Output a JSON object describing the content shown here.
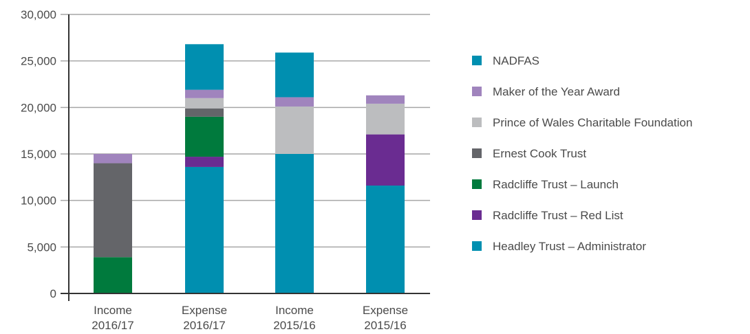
{
  "chart_data": {
    "type": "bar",
    "stacked": true,
    "title": "",
    "xlabel": "",
    "ylabel": "",
    "ylim": [
      0,
      30000
    ],
    "yticks": [
      0,
      5000,
      10000,
      15000,
      20000,
      25000,
      30000
    ],
    "ytick_labels": [
      "0",
      "5,000",
      "10,000",
      "15,000",
      "20,000",
      "25,000",
      "30,000"
    ],
    "grid": true,
    "legend_position": "right",
    "categories": [
      [
        "Income",
        "2016/17"
      ],
      [
        "Expense",
        "2016/17"
      ],
      [
        "Income",
        "2015/16"
      ],
      [
        "Expense",
        "2015/16"
      ]
    ],
    "series": [
      {
        "name": "Headley Trust – Administrator",
        "color": "#008fb0",
        "values": [
          0,
          13600,
          15000,
          11600
        ]
      },
      {
        "name": "Radcliffe Trust – Red List",
        "color": "#6a2c91",
        "values": [
          0,
          1100,
          0,
          5500
        ]
      },
      {
        "name": "Radcliffe Trust – Launch",
        "color": "#007a3d",
        "values": [
          3900,
          4300,
          0,
          0
        ]
      },
      {
        "name": "Ernest Cook Trust",
        "color": "#646569",
        "values": [
          10100,
          900,
          0,
          0
        ]
      },
      {
        "name": "Prince of Wales Charitable Foundation",
        "color": "#bcbdbf",
        "values": [
          0,
          1100,
          5100,
          3300
        ]
      },
      {
        "name": "Maker of the Year Award",
        "color": "#a084bd",
        "values": [
          1000,
          900,
          1000,
          900
        ]
      },
      {
        "name": "NADFAS",
        "color": "#008fb0",
        "values": [
          0,
          4900,
          4800,
          0
        ]
      }
    ]
  }
}
